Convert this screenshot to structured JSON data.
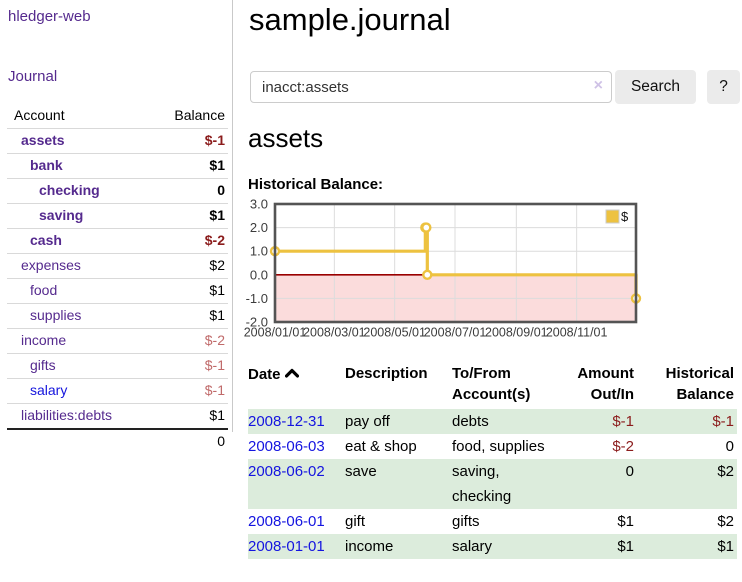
{
  "app": {
    "brand": "hledger-web",
    "nav_journal": "Journal"
  },
  "sidebar": {
    "header": {
      "account": "Account",
      "balance": "Balance"
    },
    "accounts": [
      {
        "name": "assets",
        "balance": "$-1"
      },
      {
        "name": "bank",
        "balance": "$1"
      },
      {
        "name": "checking",
        "balance": "0"
      },
      {
        "name": "saving",
        "balance": "$1"
      },
      {
        "name": "cash",
        "balance": "$-2"
      },
      {
        "name": "expenses",
        "balance": "$2"
      },
      {
        "name": "food",
        "balance": "$1"
      },
      {
        "name": "supplies",
        "balance": "$1"
      },
      {
        "name": "income",
        "balance": "$-2"
      },
      {
        "name": "gifts",
        "balance": "$-1"
      },
      {
        "name": "salary",
        "balance": "$-1"
      },
      {
        "name": "liabilities:debts",
        "balance": "$1"
      }
    ],
    "total": "0"
  },
  "header": {
    "title": "sample.journal"
  },
  "search": {
    "value": "inacct:assets",
    "clear_icon": "×",
    "button": "Search",
    "help_button": "?"
  },
  "account_page": {
    "title": "assets",
    "chart_label": "Historical Balance:"
  },
  "chart_data": {
    "type": "line",
    "title": "Historical Balance",
    "series": [
      {
        "name": "$",
        "color": "#edc240",
        "step": true,
        "points": [
          {
            "x": "2008-01-01",
            "y": 1
          },
          {
            "x": "2008-06-01",
            "y": 2
          },
          {
            "x": "2008-06-02",
            "y": 2
          },
          {
            "x": "2008-06-03",
            "y": 0
          },
          {
            "x": "2008-12-31",
            "y": -1
          }
        ]
      }
    ],
    "x_ticks": [
      "2008/01/01",
      "2008/03/01",
      "2008/05/01",
      "2008/07/01",
      "2008/09/01",
      "2008/11/01"
    ],
    "y_ticks": [
      "3.0",
      "2.0",
      "1.0",
      "0.0",
      "-1.0",
      "-2.0"
    ],
    "xlim": [
      "2008-01-01",
      "2008-12-31"
    ],
    "ylim": [
      -2,
      3
    ],
    "grid": true,
    "legend": {
      "label": "$",
      "position": "top-right"
    },
    "colors": {
      "border": "#545454",
      "gridline": "#dcdcdc",
      "negative_region": "#fbdcdc",
      "zero_line": "#990000",
      "tick_text": "#3c3c3c",
      "marker_fill": "#ffffff"
    }
  },
  "register": {
    "columns": {
      "date": "Date",
      "description": "Description",
      "tofrom": "To/From Account(s)",
      "amount": "Amount Out/In",
      "balance": "Historical Balance"
    },
    "rows": [
      {
        "date": "2008-12-31",
        "description": "pay off",
        "accounts": "debts",
        "amount": "$-1",
        "balance": "$-1"
      },
      {
        "date": "2008-06-03",
        "description": "eat & shop",
        "accounts": "food, supplies",
        "amount": "$-2",
        "balance": "0"
      },
      {
        "date": "2008-06-02",
        "description": "save",
        "accounts": "saving, checking",
        "amount": "0",
        "balance": "$2"
      },
      {
        "date": "2008-06-01",
        "description": "gift",
        "accounts": "gifts",
        "amount": "$1",
        "balance": "$2"
      },
      {
        "date": "2008-01-01",
        "description": "income",
        "accounts": "salary",
        "amount": "$1",
        "balance": "$1"
      }
    ]
  }
}
